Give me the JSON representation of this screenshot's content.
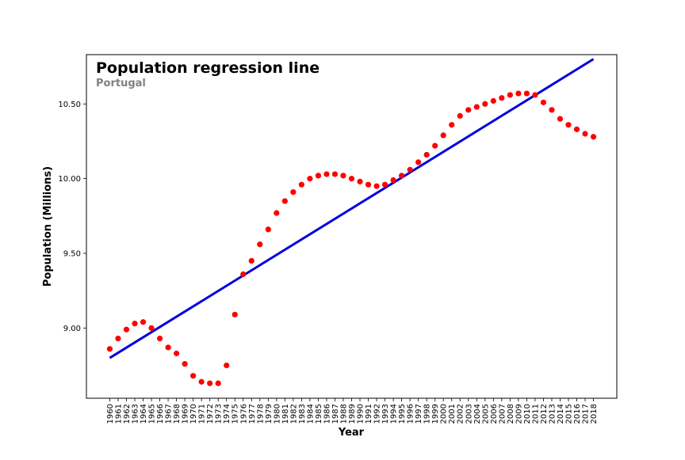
{
  "chart_data": {
    "type": "scatter",
    "title": "Population regression line",
    "subtitle": "Portugal",
    "xlabel": "Year",
    "ylabel": "Population (Millions)",
    "xlim": [
      1957.2,
      2020.8
    ],
    "ylim": [
      8.53,
      10.83
    ],
    "y_ticks": [
      9.0,
      9.5,
      10.0,
      10.5
    ],
    "y_tick_labels": [
      "9.00",
      "9.50",
      "10.00",
      "10.50"
    ],
    "grid": false,
    "legend": "none",
    "colors": {
      "points": "#ff0000",
      "line": "#0000dd"
    },
    "x": [
      1960,
      1961,
      1962,
      1963,
      1964,
      1965,
      1966,
      1967,
      1968,
      1969,
      1970,
      1971,
      1972,
      1973,
      1974,
      1975,
      1976,
      1977,
      1978,
      1979,
      1980,
      1981,
      1982,
      1983,
      1984,
      1985,
      1986,
      1987,
      1988,
      1989,
      1990,
      1991,
      1992,
      1993,
      1994,
      1995,
      1996,
      1997,
      1998,
      1999,
      2000,
      2001,
      2002,
      2003,
      2004,
      2005,
      2006,
      2007,
      2008,
      2009,
      2010,
      2011,
      2012,
      2013,
      2014,
      2015,
      2016,
      2017,
      2018
    ],
    "x_tick_labels": [
      "1960",
      "1961",
      "1962",
      "1963",
      "1964",
      "1965",
      "1966",
      "1967",
      "1968",
      "1969",
      "1970",
      "1971",
      "1972",
      "1973",
      "1974",
      "1975",
      "1976",
      "1977",
      "1978",
      "1979",
      "1980",
      "1981",
      "1982",
      "1983",
      "1984",
      "1985",
      "1986",
      "1987",
      "1988",
      "1989",
      "1990",
      "1991",
      "1992",
      "1993",
      "1994",
      "1995",
      "1996",
      "1997",
      "1998",
      "1999",
      "2000",
      "2001",
      "2002",
      "2003",
      "2004",
      "2005",
      "2006",
      "2007",
      "2008",
      "2009",
      "2010",
      "2011",
      "2012",
      "2013",
      "2014",
      "2015",
      "2016",
      "2017",
      "2018"
    ],
    "series": [
      {
        "type": "scatter",
        "values": [
          8.86,
          8.93,
          8.99,
          9.03,
          9.04,
          9.0,
          8.93,
          8.87,
          8.83,
          8.76,
          8.68,
          8.64,
          8.63,
          8.63,
          8.75,
          9.09,
          9.36,
          9.45,
          9.56,
          9.66,
          9.77,
          9.85,
          9.91,
          9.96,
          10.0,
          10.02,
          10.03,
          10.03,
          10.02,
          10.0,
          9.98,
          9.96,
          9.95,
          9.96,
          9.99,
          10.02,
          10.06,
          10.11,
          10.16,
          10.22,
          10.29,
          10.36,
          10.42,
          10.46,
          10.48,
          10.5,
          10.52,
          10.54,
          10.56,
          10.57,
          10.57,
          10.56,
          10.51,
          10.46,
          10.4,
          10.36,
          10.33,
          10.3,
          10.28
        ]
      },
      {
        "type": "line",
        "x": [
          1960,
          2018
        ],
        "values": [
          8.8,
          10.8
        ]
      }
    ]
  }
}
